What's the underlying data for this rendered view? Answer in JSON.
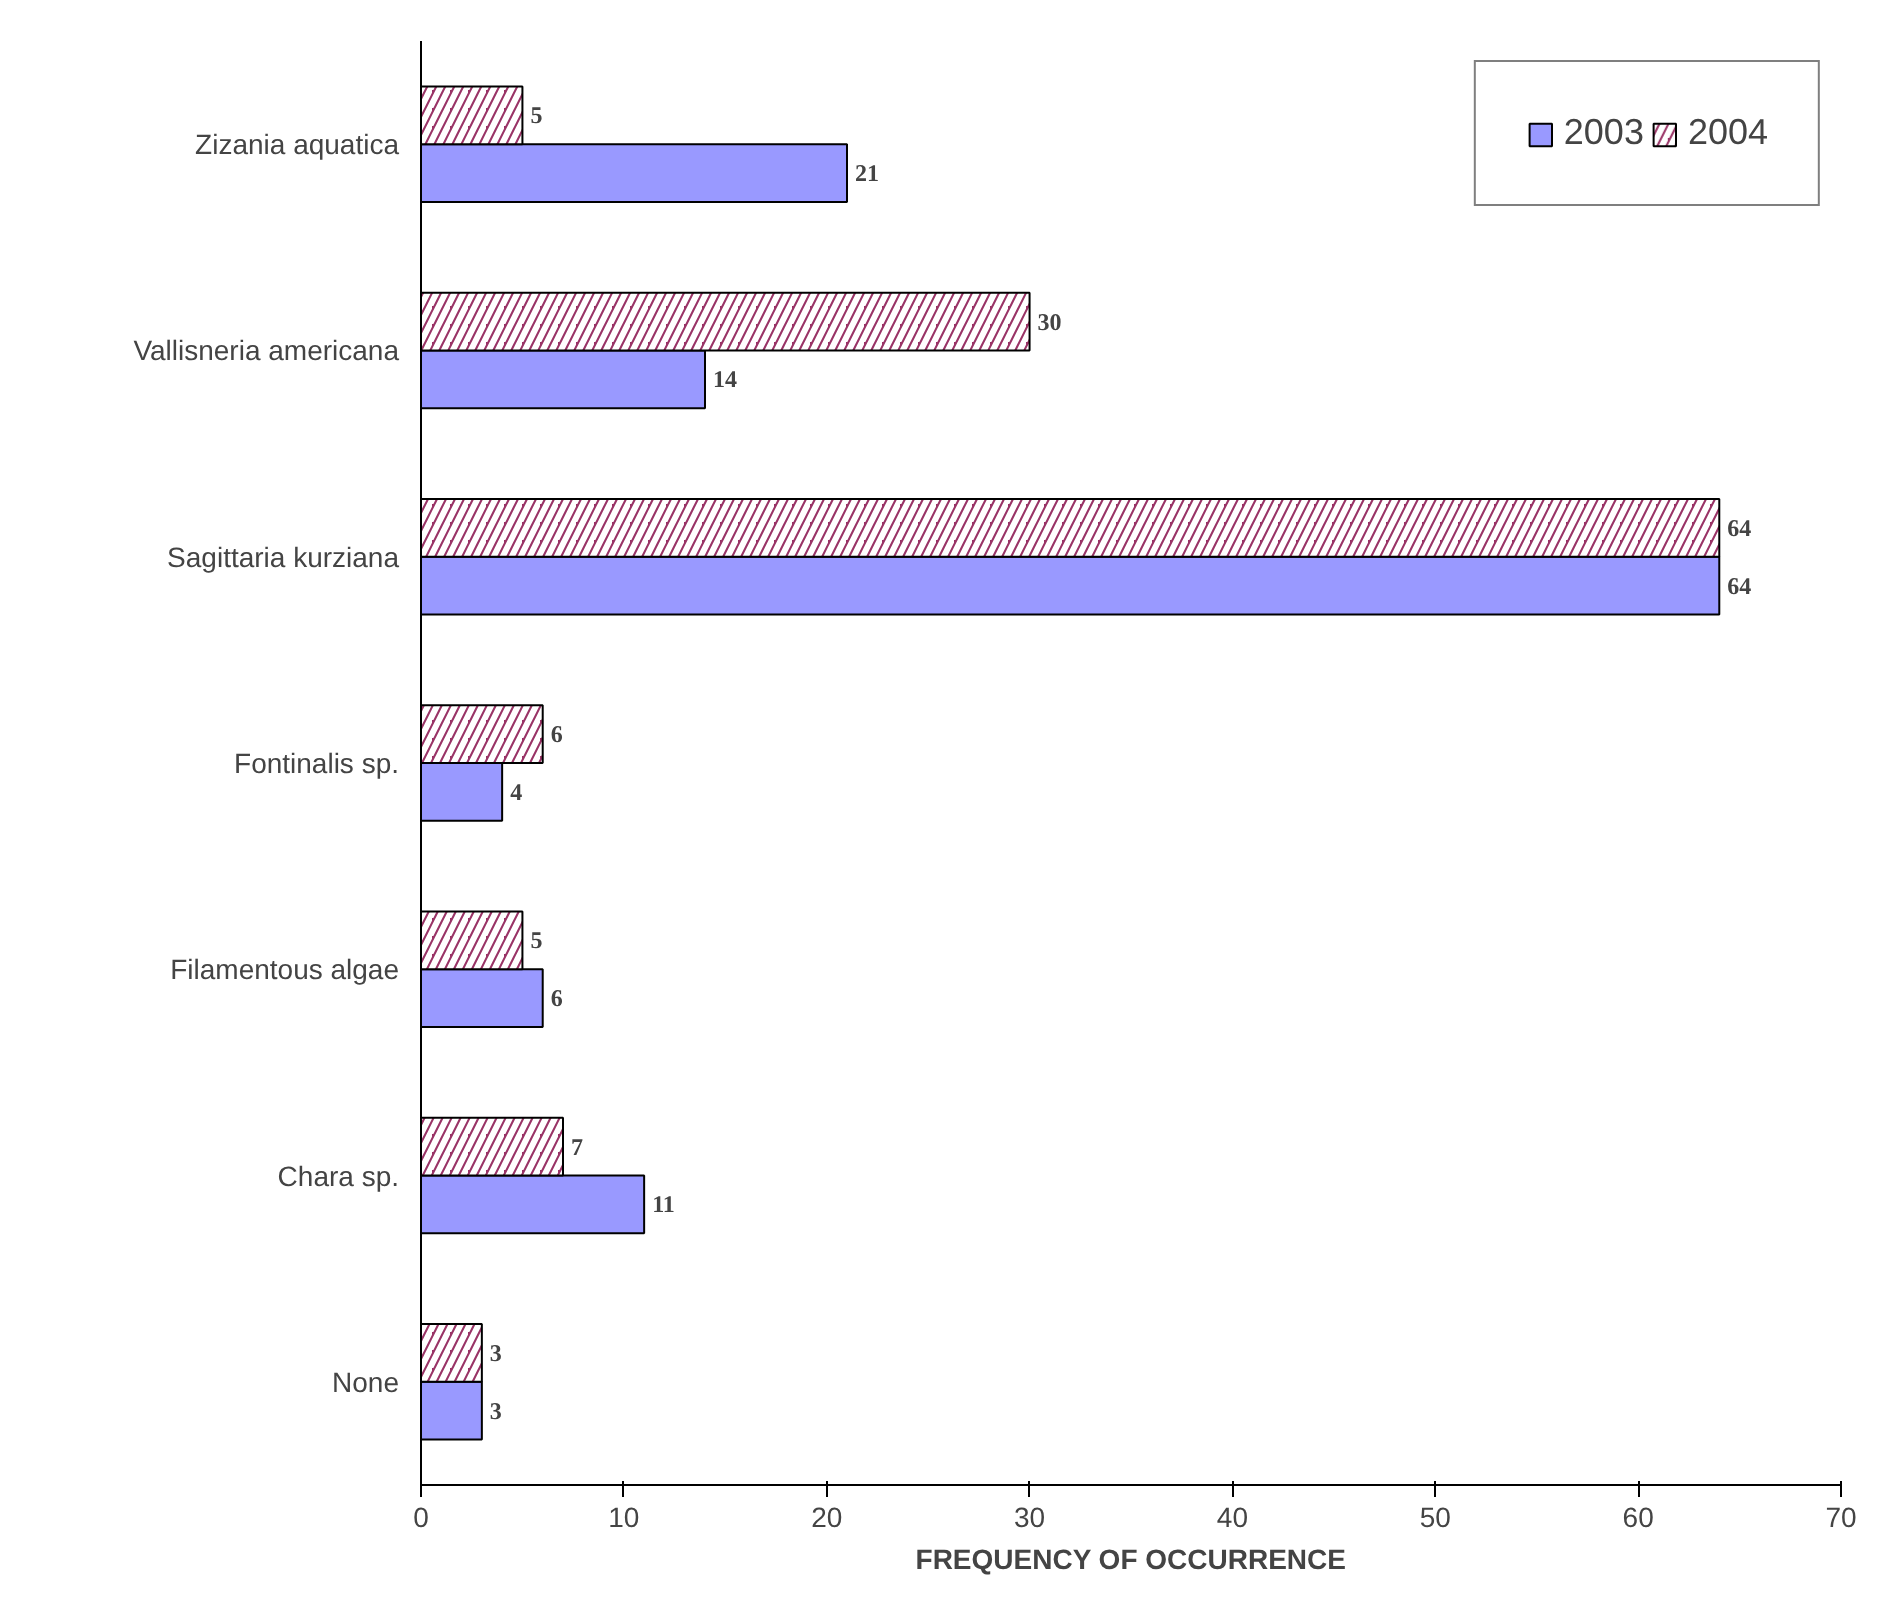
{
  "chart_data": {
    "type": "bar",
    "orientation": "horizontal",
    "xlabel": "FREQUENCY OF OCCURRENCE",
    "categories": [
      "Zizania aquatica",
      "Vallisneria americana",
      "Sagittaria kurziana",
      "Fontinalis sp.",
      "Filamentous algae",
      "Chara sp.",
      "None"
    ],
    "series": [
      {
        "name": "2003",
        "color": "#9999ff",
        "values": [
          21,
          14,
          64,
          4,
          6,
          11,
          3
        ]
      },
      {
        "name": "2004",
        "color": "#993366",
        "values": [
          5,
          30,
          64,
          6,
          5,
          7,
          3
        ]
      }
    ],
    "xlim": [
      0,
      70
    ],
    "xticks": [
      0,
      10,
      20,
      30,
      40,
      50,
      60,
      70
    ],
    "data_labels": true,
    "legend": "top right",
    "grid": false
  }
}
